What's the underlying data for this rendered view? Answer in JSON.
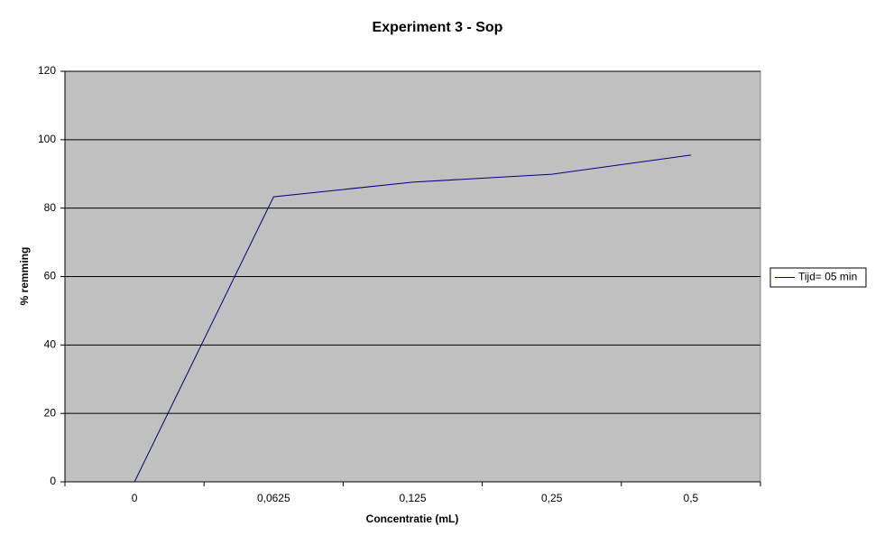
{
  "chart_data": {
    "type": "line",
    "title": "Experiment 3 - Sop",
    "x_label": "Concentratie (mL)",
    "y_label": "% remming",
    "categories": [
      "0",
      "0,0625",
      "0,125",
      "0,25",
      "0,5"
    ],
    "series": [
      {
        "name": "Tijd= 05 min",
        "color": "#000080",
        "values": [
          0,
          83.3,
          87.6,
          89.9,
          95.5
        ]
      }
    ],
    "ylim": [
      0,
      120
    ],
    "yticks": [
      0,
      20,
      40,
      60,
      80,
      100,
      120
    ],
    "grid": true,
    "legend": "right",
    "plot_background": "#c0c0c0"
  }
}
